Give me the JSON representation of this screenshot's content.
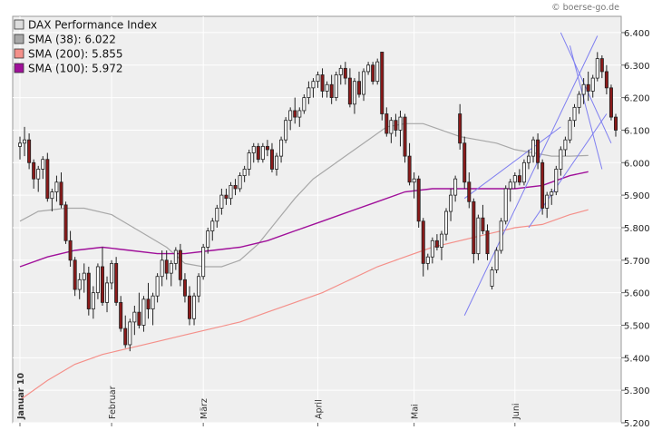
{
  "watermark": "© boerse-go.de",
  "colors": {
    "background": "#efefef",
    "grid": "#ffffff",
    "candle_up_fill": "#ffffff",
    "candle_down_fill": "#8b1a1a",
    "candle_outline": "#222222",
    "sma38": "#a8a8a8",
    "sma200": "#f4908a",
    "sma100": "#a0109a",
    "trendline": "#7f7ff0"
  },
  "chart_data": {
    "type": "candlestick",
    "title": "DAX Performance Index",
    "legend_position": "top-left",
    "grid": true,
    "ylim": [
      5200,
      6450
    ],
    "y_ticks": [
      "5.200",
      "5.300",
      "5.400",
      "5.500",
      "5.600",
      "5.700",
      "5.800",
      "5.900",
      "6.000",
      "6.100",
      "6.200",
      "6.300",
      "6.400"
    ],
    "x_ticks": [
      "Januar 10",
      "Februar",
      "März",
      "April",
      "Mai",
      "Juni"
    ],
    "legend": [
      {
        "label": "DAX Performance Index",
        "color": "#dddddd"
      },
      {
        "label": "SMA (38): 6.022",
        "color": "#a8a8a8"
      },
      {
        "label": "SMA (200): 5.855",
        "color": "#f4908a"
      },
      {
        "label": "SMA (100): 5.972",
        "color": "#a0109a"
      }
    ],
    "candles": [
      [
        6050,
        6080,
        6010,
        6060
      ],
      [
        6060,
        6110,
        6020,
        6070
      ],
      [
        6070,
        6090,
        5980,
        6000
      ],
      [
        6000,
        6010,
        5920,
        5950
      ],
      [
        5950,
        5990,
        5910,
        5980
      ],
      [
        5980,
        6020,
        5950,
        6010
      ],
      [
        6010,
        6030,
        5880,
        5890
      ],
      [
        5890,
        5920,
        5850,
        5910
      ],
      [
        5910,
        5960,
        5880,
        5940
      ],
      [
        5940,
        5970,
        5860,
        5870
      ],
      [
        5870,
        5880,
        5750,
        5760
      ],
      [
        5760,
        5790,
        5680,
        5700
      ],
      [
        5700,
        5710,
        5590,
        5610
      ],
      [
        5610,
        5660,
        5580,
        5640
      ],
      [
        5640,
        5690,
        5600,
        5660
      ],
      [
        5660,
        5680,
        5530,
        5550
      ],
      [
        5550,
        5620,
        5520,
        5600
      ],
      [
        5600,
        5690,
        5580,
        5680
      ],
      [
        5680,
        5740,
        5560,
        5570
      ],
      [
        5570,
        5650,
        5540,
        5630
      ],
      [
        5630,
        5700,
        5610,
        5690
      ],
      [
        5690,
        5710,
        5560,
        5570
      ],
      [
        5570,
        5590,
        5480,
        5490
      ],
      [
        5490,
        5530,
        5430,
        5440
      ],
      [
        5440,
        5520,
        5420,
        5510
      ],
      [
        5510,
        5560,
        5470,
        5540
      ],
      [
        5540,
        5600,
        5490,
        5500
      ],
      [
        5500,
        5590,
        5480,
        5580
      ],
      [
        5580,
        5630,
        5520,
        5550
      ],
      [
        5550,
        5600,
        5500,
        5590
      ],
      [
        5590,
        5660,
        5570,
        5650
      ],
      [
        5650,
        5730,
        5620,
        5700
      ],
      [
        5700,
        5730,
        5640,
        5660
      ],
      [
        5660,
        5700,
        5620,
        5690
      ],
      [
        5690,
        5740,
        5670,
        5730
      ],
      [
        5730,
        5750,
        5620,
        5640
      ],
      [
        5640,
        5660,
        5570,
        5590
      ],
      [
        5590,
        5620,
        5500,
        5520
      ],
      [
        5520,
        5600,
        5500,
        5590
      ],
      [
        5590,
        5660,
        5570,
        5650
      ],
      [
        5650,
        5750,
        5640,
        5740
      ],
      [
        5740,
        5800,
        5720,
        5790
      ],
      [
        5790,
        5830,
        5760,
        5820
      ],
      [
        5820,
        5870,
        5800,
        5860
      ],
      [
        5860,
        5920,
        5840,
        5900
      ],
      [
        5900,
        5920,
        5870,
        5890
      ],
      [
        5890,
        5940,
        5870,
        5930
      ],
      [
        5930,
        5950,
        5900,
        5920
      ],
      [
        5920,
        5970,
        5910,
        5960
      ],
      [
        5960,
        5990,
        5940,
        5980
      ],
      [
        5980,
        6040,
        5960,
        6030
      ],
      [
        6030,
        6060,
        6000,
        6050
      ],
      [
        6050,
        6060,
        6000,
        6010
      ],
      [
        6010,
        6060,
        6000,
        6050
      ],
      [
        6050,
        6070,
        6020,
        6040
      ],
      [
        6040,
        6060,
        5970,
        5980
      ],
      [
        5980,
        6030,
        5960,
        6020
      ],
      [
        6020,
        6080,
        6000,
        6070
      ],
      [
        6070,
        6140,
        6060,
        6130
      ],
      [
        6130,
        6170,
        6100,
        6160
      ],
      [
        6160,
        6200,
        6120,
        6140
      ],
      [
        6140,
        6170,
        6110,
        6160
      ],
      [
        6160,
        6210,
        6150,
        6200
      ],
      [
        6200,
        6250,
        6180,
        6230
      ],
      [
        6230,
        6260,
        6200,
        6250
      ],
      [
        6250,
        6280,
        6230,
        6270
      ],
      [
        6270,
        6290,
        6200,
        6220
      ],
      [
        6220,
        6250,
        6200,
        6240
      ],
      [
        6240,
        6270,
        6180,
        6200
      ],
      [
        6200,
        6280,
        6190,
        6270
      ],
      [
        6270,
        6300,
        6240,
        6290
      ],
      [
        6290,
        6310,
        6240,
        6260
      ],
      [
        6260,
        6290,
        6170,
        6180
      ],
      [
        6180,
        6260,
        6150,
        6250
      ],
      [
        6250,
        6280,
        6200,
        6210
      ],
      [
        6210,
        6290,
        6190,
        6280
      ],
      [
        6280,
        6310,
        6270,
        6300
      ],
      [
        6300,
        6310,
        6240,
        6250
      ],
      [
        6250,
        6320,
        6240,
        6310
      ],
      [
        6340,
        6340,
        6130,
        6150
      ],
      [
        6150,
        6170,
        6080,
        6090
      ],
      [
        6090,
        6140,
        6060,
        6130
      ],
      [
        6130,
        6150,
        6080,
        6100
      ],
      [
        6100,
        6160,
        6050,
        6140
      ],
      [
        6140,
        6150,
        6000,
        6020
      ],
      [
        6020,
        6060,
        5930,
        5940
      ],
      [
        5940,
        5970,
        5890,
        5950
      ],
      [
        5950,
        5960,
        5800,
        5820
      ],
      [
        5820,
        5830,
        5650,
        5690
      ],
      [
        5690,
        5720,
        5670,
        5710
      ],
      [
        5710,
        5770,
        5690,
        5760
      ],
      [
        5760,
        5780,
        5730,
        5740
      ],
      [
        5740,
        5790,
        5700,
        5780
      ],
      [
        5780,
        5860,
        5760,
        5850
      ],
      [
        5850,
        5920,
        5820,
        5900
      ],
      [
        5900,
        5960,
        5880,
        5950
      ],
      [
        6150,
        6180,
        6040,
        6060
      ],
      [
        6060,
        6080,
        5920,
        5940
      ],
      [
        5940,
        5970,
        5860,
        5880
      ],
      [
        5880,
        5890,
        5690,
        5720
      ],
      [
        5720,
        5840,
        5700,
        5830
      ],
      [
        5830,
        5870,
        5780,
        5790
      ],
      [
        5790,
        5810,
        5700,
        5720
      ],
      [
        5620,
        5680,
        5610,
        5670
      ],
      [
        5670,
        5740,
        5660,
        5730
      ],
      [
        5730,
        5830,
        5720,
        5820
      ],
      [
        5820,
        5930,
        5810,
        5920
      ],
      [
        5920,
        5950,
        5880,
        5940
      ],
      [
        5940,
        5970,
        5920,
        5960
      ],
      [
        5960,
        5980,
        5930,
        5940
      ],
      [
        5940,
        6010,
        5930,
        6000
      ],
      [
        6000,
        6040,
        5980,
        6020
      ],
      [
        6020,
        6080,
        6000,
        6070
      ],
      [
        6070,
        6090,
        5980,
        6000
      ],
      [
        6000,
        6010,
        5840,
        5860
      ],
      [
        5860,
        5910,
        5830,
        5900
      ],
      [
        5900,
        5920,
        5870,
        5910
      ],
      [
        5910,
        5990,
        5900,
        5980
      ],
      [
        5980,
        6050,
        5960,
        6040
      ],
      [
        6040,
        6080,
        6020,
        6070
      ],
      [
        6070,
        6140,
        6060,
        6130
      ],
      [
        6130,
        6180,
        6110,
        6170
      ],
      [
        6170,
        6220,
        6150,
        6210
      ],
      [
        6210,
        6260,
        6180,
        6240
      ],
      [
        6240,
        6280,
        6190,
        6220
      ],
      [
        6220,
        6270,
        6200,
        6260
      ],
      [
        6260,
        6340,
        6250,
        6320
      ],
      [
        6320,
        6330,
        6260,
        6280
      ],
      [
        6280,
        6300,
        6210,
        6230
      ],
      [
        6230,
        6240,
        6130,
        6140
      ],
      [
        6140,
        6150,
        6080,
        6100
      ]
    ],
    "sma38": [
      [
        0,
        5820
      ],
      [
        4,
        5850
      ],
      [
        10,
        5860
      ],
      [
        14,
        5860
      ],
      [
        20,
        5840
      ],
      [
        26,
        5790
      ],
      [
        32,
        5740
      ],
      [
        36,
        5690
      ],
      [
        40,
        5680
      ],
      [
        44,
        5680
      ],
      [
        48,
        5700
      ],
      [
        52,
        5750
      ],
      [
        56,
        5820
      ],
      [
        60,
        5890
      ],
      [
        64,
        5950
      ],
      [
        68,
        5990
      ],
      [
        72,
        6030
      ],
      [
        76,
        6070
      ],
      [
        80,
        6110
      ],
      [
        84,
        6120
      ],
      [
        88,
        6120
      ],
      [
        92,
        6100
      ],
      [
        96,
        6080
      ],
      [
        100,
        6070
      ],
      [
        104,
        6060
      ],
      [
        108,
        6040
      ],
      [
        112,
        6030
      ],
      [
        116,
        6020
      ],
      [
        120,
        6020
      ],
      [
        124,
        6022
      ]
    ],
    "sma200": [
      [
        0,
        5270
      ],
      [
        6,
        5330
      ],
      [
        12,
        5380
      ],
      [
        18,
        5410
      ],
      [
        24,
        5430
      ],
      [
        30,
        5450
      ],
      [
        36,
        5470
      ],
      [
        42,
        5490
      ],
      [
        48,
        5510
      ],
      [
        54,
        5540
      ],
      [
        60,
        5570
      ],
      [
        66,
        5600
      ],
      [
        72,
        5640
      ],
      [
        78,
        5680
      ],
      [
        84,
        5710
      ],
      [
        90,
        5740
      ],
      [
        96,
        5760
      ],
      [
        102,
        5780
      ],
      [
        108,
        5800
      ],
      [
        114,
        5810
      ],
      [
        120,
        5840
      ],
      [
        124,
        5855
      ]
    ],
    "sma100": [
      [
        0,
        5680
      ],
      [
        6,
        5710
      ],
      [
        12,
        5730
      ],
      [
        18,
        5740
      ],
      [
        24,
        5730
      ],
      [
        30,
        5720
      ],
      [
        36,
        5720
      ],
      [
        42,
        5730
      ],
      [
        48,
        5740
      ],
      [
        54,
        5760
      ],
      [
        60,
        5790
      ],
      [
        66,
        5820
      ],
      [
        72,
        5850
      ],
      [
        78,
        5880
      ],
      [
        84,
        5910
      ],
      [
        90,
        5920
      ],
      [
        96,
        5920
      ],
      [
        102,
        5920
      ],
      [
        108,
        5920
      ],
      [
        114,
        5930
      ],
      [
        120,
        5960
      ],
      [
        124,
        5972
      ]
    ],
    "trendlines": [
      [
        [
          97,
          5890
        ],
        [
          118,
          6110
        ]
      ],
      [
        [
          97,
          5530
        ],
        [
          126,
          6390
        ]
      ],
      [
        [
          111,
          5800
        ],
        [
          128,
          6150
        ]
      ],
      [
        [
          120,
          6360
        ],
        [
          127,
          5980
        ]
      ],
      [
        [
          118,
          6400
        ],
        [
          129,
          6060
        ]
      ]
    ]
  }
}
